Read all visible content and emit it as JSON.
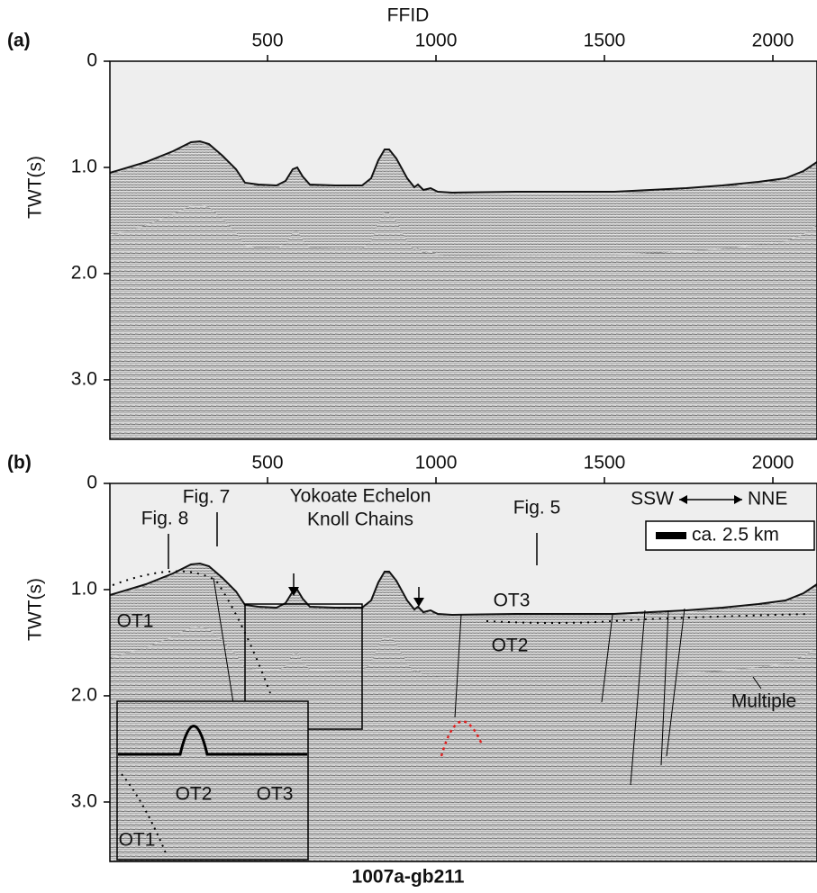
{
  "figure": {
    "top_axis_title": "FFID",
    "bottom_title": "1007a-gb211",
    "y_axis_title": "TWT(s)",
    "xlim": [
      32,
      2131
    ],
    "xticks": [
      500,
      1000,
      1500,
      2000
    ],
    "ylim": [
      3.56,
      0
    ],
    "yticks": [
      0,
      {
        "value": 1,
        "label": "1.0"
      },
      {
        "value": 2,
        "label": "2.0"
      },
      {
        "value": 3,
        "label": "3.0"
      }
    ],
    "panels": [
      {
        "label": "(a)"
      },
      {
        "label": "(b)",
        "annotations": {
          "fig8": "Fig. 8",
          "fig7": "Fig. 7",
          "knoll_line1": "Yokoate Echelon",
          "knoll_line2": "Knoll Chains",
          "fig5": "Fig. 5",
          "direction_left": "SSW",
          "direction_right": "NNE",
          "scale": "ca. 2.5 km",
          "ot1": "OT1",
          "ot3": "OT3",
          "ot2": "OT2",
          "multiple": "Multiple",
          "inset_ot2": "OT2",
          "inset_ot3": "OT3",
          "inset_ot1": "OT1"
        }
      }
    ]
  }
}
